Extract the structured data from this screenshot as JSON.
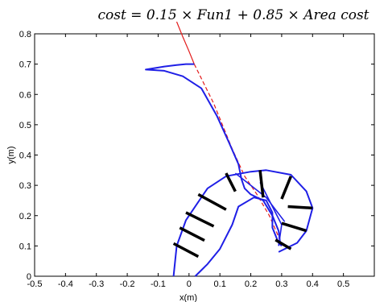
{
  "chart_data": {
    "type": "line",
    "title": "cost = 0.15 × Fun1  + 0.85 × Area cost",
    "xlabel": "x(m)",
    "ylabel": "y(m)",
    "xlim": [
      -0.5,
      0.6
    ],
    "ylim": [
      0,
      0.8
    ],
    "grid": false,
    "x_ticks": [
      "-0.5",
      "-0.4",
      "-0.3",
      "-0.2",
      "-0.1",
      "0",
      "0.1",
      "0.2",
      "0.3",
      "0.4",
      "0.5"
    ],
    "y_ticks": [
      "0",
      "0.1",
      "0.2",
      "0.3",
      "0.4",
      "0.5",
      "0.6",
      "0.7",
      "0.8"
    ],
    "colors": {
      "blue": "#1f1fe6",
      "red": "#e31a1a",
      "black": "#000000"
    },
    "series": [
      {
        "style": "red-solid",
        "x": [
          0.017,
          -0.001,
          -0.02,
          -0.04
        ],
        "y": [
          0.7,
          0.745,
          0.79,
          0.84
        ]
      },
      {
        "style": "red-dashed",
        "x": [
          0.017,
          0.08,
          0.14,
          0.18,
          0.22,
          0.26,
          0.29,
          0.3
        ],
        "y": [
          0.7,
          0.57,
          0.42,
          0.33,
          0.27,
          0.2,
          0.13,
          0.1
        ]
      },
      {
        "style": "blue-spine",
        "x": [
          0.017,
          -0.01,
          -0.04,
          -0.08,
          -0.14,
          -0.08,
          -0.02,
          0.04,
          0.09,
          0.13,
          0.16,
          0.17,
          0.18,
          0.2,
          0.24,
          0.27,
          0.29,
          0.295
        ],
        "y": [
          0.7,
          0.7,
          0.697,
          0.692,
          0.682,
          0.678,
          0.66,
          0.62,
          0.53,
          0.44,
          0.37,
          0.32,
          0.29,
          0.27,
          0.25,
          0.2,
          0.15,
          0.11
        ]
      },
      {
        "style": "blue-outer-boundary",
        "x": [
          -0.05,
          -0.04,
          -0.01,
          0.03,
          0.06,
          0.12,
          0.2,
          0.25,
          0.33,
          0.38,
          0.4,
          0.38,
          0.35,
          0.29
        ],
        "y": [
          0,
          0.1,
          0.185,
          0.245,
          0.29,
          0.33,
          0.345,
          0.35,
          0.335,
          0.28,
          0.225,
          0.15,
          0.11,
          0.08
        ]
      },
      {
        "style": "blue-inner-boundary",
        "x": [
          0.02,
          0.06,
          0.1,
          0.14,
          0.16,
          0.21,
          0.25,
          0.27,
          0.27,
          0.29,
          0.3
        ],
        "y": [
          0,
          0.04,
          0.09,
          0.17,
          0.23,
          0.26,
          0.25,
          0.21,
          0.16,
          0.11,
          0.1
        ]
      },
      {
        "style": "blue-cross",
        "x": [
          0.15,
          0.2,
          0.25,
          0.31
        ],
        "y": [
          0.34,
          0.3,
          0.26,
          0.18
        ]
      },
      {
        "style": "blue-cross",
        "x": [
          0.23,
          0.27,
          0.3,
          0.29
        ],
        "y": [
          0.31,
          0.23,
          0.17,
          0.1
        ]
      },
      {
        "style": "black-segments",
        "segments": [
          {
            "x": [
              -0.05,
              0.03
            ],
            "y": [
              0.108,
              0.065
            ]
          },
          {
            "x": [
              -0.03,
              0.05
            ],
            "y": [
              0.16,
              0.118
            ]
          },
          {
            "x": [
              -0.01,
              0.08
            ],
            "y": [
              0.21,
              0.165
            ]
          },
          {
            "x": [
              0.03,
              0.12
            ],
            "y": [
              0.27,
              0.22
            ]
          },
          {
            "x": [
              0.12,
              0.15
            ],
            "y": [
              0.34,
              0.28
            ]
          },
          {
            "x": [
              0.23,
              0.24
            ],
            "y": [
              0.35,
              0.26
            ]
          },
          {
            "x": [
              0.33,
              0.3
            ],
            "y": [
              0.33,
              0.255
            ]
          },
          {
            "x": [
              0.4,
              0.32
            ],
            "y": [
              0.225,
              0.23
            ]
          },
          {
            "x": [
              0.38,
              0.3
            ],
            "y": [
              0.15,
              0.175
            ]
          },
          {
            "x": [
              0.33,
              0.28
            ],
            "y": [
              0.09,
              0.12
            ]
          }
        ]
      }
    ]
  }
}
